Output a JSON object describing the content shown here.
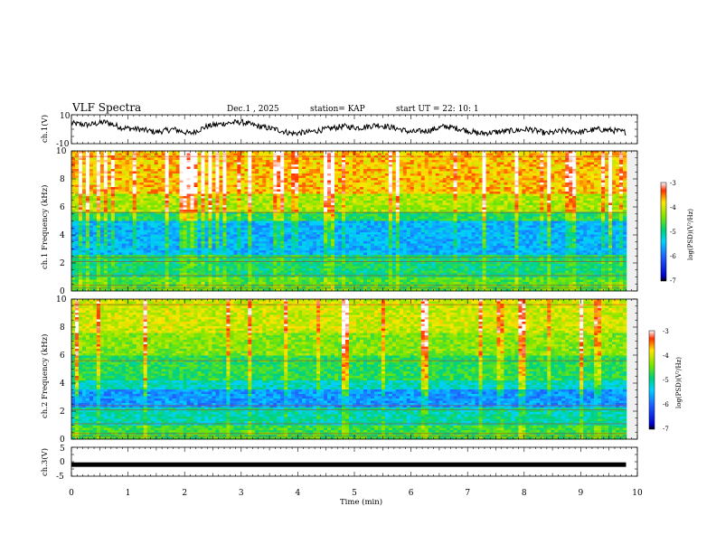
{
  "chart_data": {
    "type": "heatmap",
    "title": "VLF Spectra",
    "date": "Dec.1 , 2025",
    "station": "station= KAP",
    "start_ut": "start UT =  22: 10: 1",
    "x_axis": {
      "label": "Time (min)",
      "range": [
        0,
        10
      ],
      "ticks": [
        "0",
        "1",
        "2",
        "3",
        "4",
        "5",
        "6",
        "7",
        "8",
        "9",
        "10"
      ]
    },
    "panels": [
      {
        "name": "ch1-voltage",
        "kind": "line",
        "ylabel": "ch.1(V)",
        "ylim": [
          -10,
          10
        ],
        "ticks": [
          "10",
          "-10"
        ],
        "series": [
          {
            "name": "ch.1",
            "x": [
              0,
              0.3,
              0.6,
              0.9,
              1.2,
              1.5,
              1.8,
              2.1,
              2.4,
              2.7,
              3.0,
              3.3,
              3.6,
              3.9,
              4.2,
              4.5,
              4.8,
              5.1,
              5.4,
              5.7,
              6.0,
              6.3,
              6.6,
              6.9,
              7.2,
              7.5,
              7.8,
              8.1,
              8.4,
              8.7,
              9.0,
              9.3,
              9.6,
              9.8
            ],
            "y": [
              4,
              3,
              5,
              1,
              0,
              -2,
              0,
              -3,
              2,
              4,
              5,
              2,
              0,
              -3,
              -2,
              0,
              2,
              1,
              3,
              1,
              -2,
              -1,
              2,
              0,
              -3,
              -2,
              -1,
              0,
              -3,
              -1,
              -2,
              0,
              -1,
              -2
            ]
          }
        ]
      },
      {
        "name": "ch1-spectrogram",
        "kind": "heatmap",
        "ylabel": "ch.1 Frequency (kHz)",
        "ylim": [
          0,
          10
        ],
        "ticks": [
          "0",
          "2",
          "4",
          "6",
          "8",
          "10"
        ],
        "colorbar": {
          "label": "log(PSD)(V²/Hz)",
          "range": [
            -7,
            -3
          ],
          "ticks": [
            "-3",
            "-4",
            "-5",
            "-6",
            "-7"
          ]
        }
      },
      {
        "name": "ch2-spectrogram",
        "kind": "heatmap",
        "ylabel": "ch.2 Frequency (kHz)",
        "ylim": [
          0,
          10
        ],
        "ticks": [
          "0",
          "2",
          "4",
          "6",
          "8",
          "10"
        ],
        "colorbar": {
          "label": "log(PSD)(V²/Hz)",
          "range": [
            -7,
            -3
          ],
          "ticks": [
            "-3",
            "-4",
            "-5",
            "-6",
            "-7"
          ]
        }
      },
      {
        "name": "ch3-voltage",
        "kind": "line",
        "ylabel": "ch.3(V)",
        "ylim": [
          -5,
          5
        ],
        "ticks": [
          "5",
          "0",
          "-5"
        ],
        "series": [
          {
            "name": "ch.3",
            "x": [
              0,
              9.8
            ],
            "y": [
              -1,
              -1
            ]
          }
        ]
      }
    ]
  }
}
